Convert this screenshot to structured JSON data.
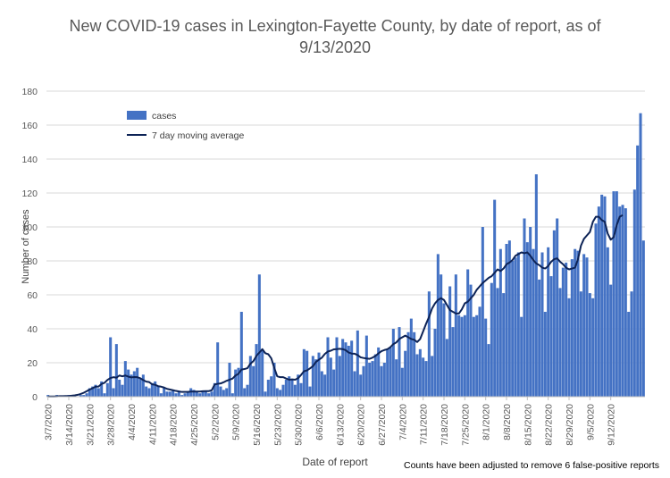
{
  "chart_data": {
    "type": "bar",
    "title_line1": "New COVID-19 cases in Lexington-Fayette County, by date of report, as of",
    "title_line2": "9/13/2020",
    "xlabel": "Date of report",
    "ylabel": "Number of cases",
    "footnote": "Counts have been adjusted to remove 6 false-positive reports",
    "ylim": [
      0,
      180
    ],
    "yticks": [
      0,
      20,
      40,
      60,
      80,
      100,
      120,
      140,
      160,
      180
    ],
    "xtick_labels": [
      "3/7/2020",
      "3/14/2020",
      "3/21/2020",
      "3/28/2020",
      "4/4/2020",
      "4/11/2020",
      "4/18/2020",
      "4/25/2020",
      "5/2/2020",
      "5/9/2020",
      "5/16/2020",
      "5/23/2020",
      "5/30/2020",
      "6/6/2020",
      "6/13/2020",
      "6/20/2020",
      "6/27/2020",
      "7/4/2020",
      "7/11/2020",
      "7/18/2020",
      "7/25/2020",
      "8/1/2020",
      "8/8/2020",
      "8/15/2020",
      "8/22/2020",
      "8/29/2020",
      "9/5/2020",
      "9/12/2020"
    ],
    "legend": {
      "placement": "top-left",
      "bar_label": "cases",
      "line_label": "7 day moving average"
    },
    "colors": {
      "bar": "#4472C4",
      "line": "#0D2356",
      "grid": "#D9D9D9"
    },
    "series": [
      {
        "name": "cases",
        "values": [
          1,
          0,
          0,
          1,
          0,
          0,
          0,
          1,
          1,
          1,
          0,
          1,
          1,
          2,
          5,
          6,
          7,
          5,
          9,
          2,
          8,
          35,
          5,
          31,
          10,
          7,
          21,
          16,
          13,
          15,
          17,
          11,
          13,
          6,
          5,
          8,
          9,
          6,
          2,
          5,
          3,
          3,
          4,
          2,
          3,
          1,
          2,
          3,
          5,
          4,
          3,
          2,
          3,
          3,
          2,
          3,
          8,
          32,
          6,
          4,
          5,
          20,
          2,
          16,
          17,
          50,
          5,
          7,
          24,
          18,
          31,
          72,
          28,
          3,
          10,
          12,
          20,
          5,
          4,
          7,
          10,
          12,
          10,
          7,
          13,
          8,
          28,
          27,
          6,
          24,
          22,
          26,
          15,
          13,
          35,
          23,
          16,
          35,
          24,
          34,
          32,
          30,
          33,
          15,
          39,
          13,
          18,
          36,
          20,
          21,
          25,
          29,
          18,
          20,
          28,
          29,
          40,
          22,
          41,
          17,
          27,
          38,
          46,
          38,
          25,
          28,
          23,
          21,
          62,
          24,
          40,
          84,
          72,
          55,
          34,
          65,
          41,
          72,
          48,
          47,
          48,
          75,
          66,
          47,
          48,
          53,
          100,
          46,
          31,
          67,
          116,
          64,
          87,
          61,
          90,
          92,
          80,
          82,
          85,
          47,
          105,
          91,
          100,
          87,
          131,
          69,
          85,
          50,
          88,
          71,
          98,
          105,
          64,
          76,
          79,
          58,
          81,
          87,
          86,
          62,
          84,
          82,
          61,
          58,
          102,
          112,
          119,
          118,
          88,
          66,
          121,
          121,
          112,
          113,
          111,
          50,
          62,
          122,
          148,
          167,
          92
        ]
      },
      {
        "name": "7 day moving average",
        "values": [
          0.1,
          0.1,
          0.1,
          0.2,
          0.3,
          0.3,
          0.4,
          0.4,
          0.6,
          0.8,
          1.1,
          1.6,
          2.3,
          3.2,
          4.2,
          5.0,
          5.9,
          6.0,
          7.5,
          8.2,
          9.9,
          11.0,
          11.5,
          11.2,
          12.5,
          12.0,
          12.5,
          11.8,
          11.4,
          11.6,
          11.5,
          10.9,
          9.8,
          8.9,
          8.6,
          7.3,
          7.0,
          6.2,
          5.9,
          5.4,
          4.6,
          4.2,
          3.8,
          3.4,
          3.1,
          2.8,
          2.8,
          2.8,
          3.0,
          3.0,
          3.0,
          3.0,
          3.2,
          3.3,
          3.3,
          3.8,
          7.2,
          7.6,
          7.8,
          8.5,
          9.4,
          10.0,
          10.7,
          12.5,
          13.5,
          16.0,
          16.3,
          16.8,
          19.5,
          21.0,
          24.0,
          26.0,
          28.0,
          25.6,
          25.0,
          22.6,
          17.0,
          12.0,
          11.5,
          11.5,
          10.7,
          10.0,
          10.2,
          10.0,
          10.9,
          12.8,
          15.0,
          15.5,
          16.7,
          18.0,
          20.5,
          21.8,
          23.0,
          25.2,
          26.6,
          27.1,
          27.9,
          28.0,
          28.2,
          28.0,
          27.4,
          26.0,
          25.4,
          25.3,
          24.5,
          23.2,
          22.8,
          22.5,
          22.3,
          23.0,
          24.0,
          25.5,
          26.8,
          27.5,
          28.0,
          29.2,
          31.0,
          32.0,
          34.0,
          35.0,
          36.0,
          35.0,
          34.0,
          33.5,
          32.2,
          34.0,
          38.5,
          43.0,
          47.0,
          52.0,
          55.0,
          57.0,
          58.0,
          57.0,
          54.0,
          51.0,
          50.0,
          49.0,
          49.0,
          51.5,
          55.0,
          56.0,
          58.0,
          60.0,
          63.0,
          65.0,
          67.0,
          68.5,
          70.0,
          71.0,
          73.0,
          75.0,
          74.0,
          75.5,
          78.0,
          79.0,
          80.5,
          83.0,
          84.0,
          85.0,
          84.5,
          85.0,
          83.0,
          80.5,
          78.5,
          77.5,
          76.0,
          75.5,
          77.0,
          79.5,
          81.0,
          81.5,
          79.5,
          78.0,
          76.0,
          75.0,
          75.5,
          76.0,
          81.0,
          89.0,
          93.0,
          95.0,
          97.0,
          103.0,
          106.0,
          106.0,
          104.0,
          103.0,
          96.0,
          92.5,
          94.0,
          101.0,
          106.0,
          107.0
        ]
      }
    ]
  }
}
